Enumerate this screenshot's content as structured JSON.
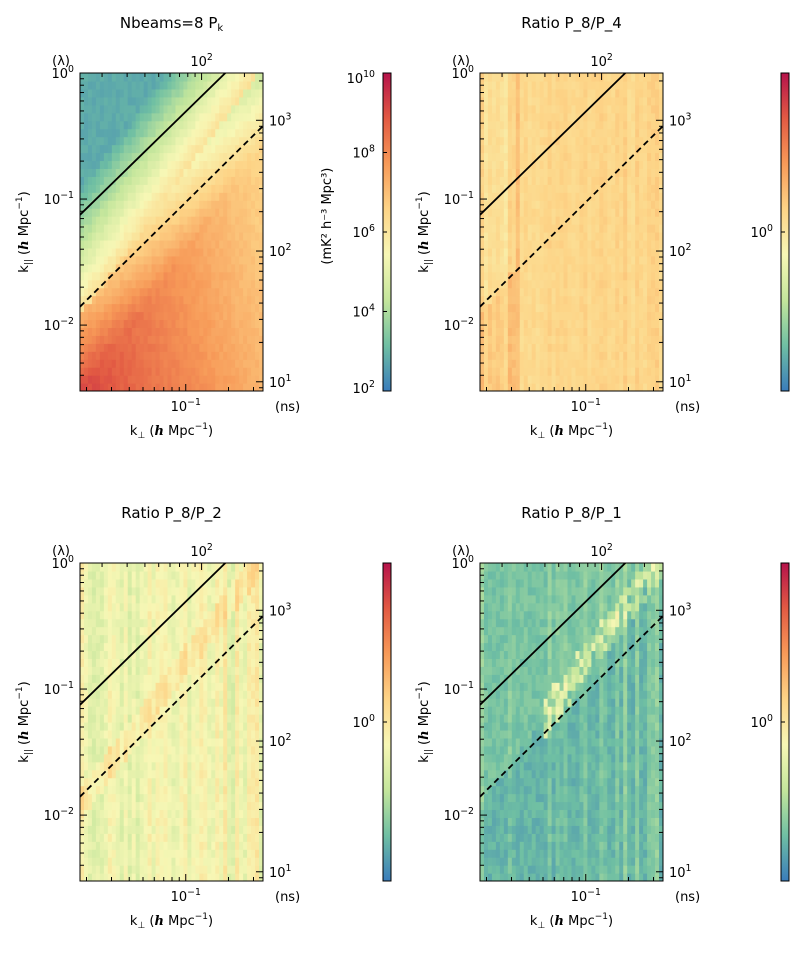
{
  "colors": {
    "spectral": [
      "#3a7dbb",
      "#6fbfa3",
      "#c4e69c",
      "#f7f7b5",
      "#fdd487",
      "#f79a58",
      "#e25a43",
      "#b5134b"
    ]
  },
  "axis_text": {
    "kperp_pre": "k",
    "kperp_sub": "⊥",
    "kpar_pre": "k",
    "kpar_sub": "||",
    "unit_italic": "h",
    "unit_rest": " Mpc",
    "unit_exp": "−1",
    "lambda": "(λ)",
    "ns": "(ns)",
    "top_tick": "10",
    "top_tick_exp": "2"
  },
  "chart_data": [
    {
      "id": "p1",
      "type": "heatmap",
      "title": "Nbeams=8 P",
      "title_sub": "k",
      "xlabel": "k⊥ (h Mpc⁻¹)",
      "ylabel": "k|| (h Mpc⁻¹)",
      "x_scale": "log",
      "xlim": [
        0.018,
        0.35
      ],
      "y_scale": "log",
      "ylim": [
        0.003,
        1.0
      ],
      "x_ticks": [
        {
          "v": 0.1,
          "m": "10",
          "e": "−1"
        }
      ],
      "y_ticks": [
        {
          "v": 0.01,
          "m": "10",
          "e": "−2"
        },
        {
          "v": 0.1,
          "m": "10",
          "e": "−1"
        },
        {
          "v": 1.0,
          "m": "10",
          "e": "0"
        }
      ],
      "right_axis": {
        "label": "(ns)",
        "ticks": [
          {
            "v": 10,
            "m": "10",
            "e": "1"
          },
          {
            "v": 100,
            "m": "10",
            "e": "2"
          },
          {
            "v": 1000,
            "m": "10",
            "e": "3"
          }
        ]
      },
      "top_axis": {
        "label": "(λ)",
        "ticks": [
          {
            "m": "10",
            "e": "2"
          }
        ]
      },
      "horizon_line": {
        "style": "solid",
        "points": [
          [
            0.018,
            0.075
          ],
          [
            0.19,
            1.0
          ]
        ]
      },
      "fov_line": {
        "style": "dashed",
        "points": [
          [
            0.018,
            0.014
          ],
          [
            0.35,
            0.38
          ]
        ]
      },
      "colorbar": {
        "label": "(mK² h⁻³ Mpc³)",
        "ticks": [
          {
            "frac": 0.0,
            "m": "10",
            "e": "2"
          },
          {
            "frac": 0.25,
            "m": "10",
            "e": "4"
          },
          {
            "frac": 0.5,
            "m": "10",
            "e": "6"
          },
          {
            "frac": 0.75,
            "m": "10",
            "e": "8"
          },
          {
            "frac": 1.0,
            "m": "10",
            "e": "10"
          }
        ]
      }
    },
    {
      "id": "p2",
      "type": "heatmap",
      "title": "Ratio P_8/P_4",
      "title_sub": "",
      "xlabel": "k⊥ (h Mpc⁻¹)",
      "ylabel": "k|| (h Mpc⁻¹)",
      "x_scale": "log",
      "xlim": [
        0.018,
        0.35
      ],
      "y_scale": "log",
      "ylim": [
        0.003,
        1.0
      ],
      "x_ticks": [
        {
          "v": 0.1,
          "m": "10",
          "e": "−1"
        }
      ],
      "y_ticks": [
        {
          "v": 0.01,
          "m": "10",
          "e": "−2"
        },
        {
          "v": 0.1,
          "m": "10",
          "e": "−1"
        },
        {
          "v": 1.0,
          "m": "10",
          "e": "0"
        }
      ],
      "right_axis": {
        "label": "(ns)",
        "ticks": [
          {
            "v": 10,
            "m": "10",
            "e": "1"
          },
          {
            "v": 100,
            "m": "10",
            "e": "2"
          },
          {
            "v": 1000,
            "m": "10",
            "e": "3"
          }
        ]
      },
      "top_axis": {
        "label": "(λ)",
        "ticks": [
          {
            "m": "10",
            "e": "2"
          }
        ]
      },
      "horizon_line": {
        "style": "solid",
        "points": [
          [
            0.018,
            0.075
          ],
          [
            0.19,
            1.0
          ]
        ]
      },
      "fov_line": {
        "style": "dashed",
        "points": [
          [
            0.018,
            0.014
          ],
          [
            0.35,
            0.38
          ]
        ]
      },
      "colorbar": {
        "label": "",
        "ticks": [
          {
            "frac": 0.5,
            "m": "10",
            "e": "0"
          }
        ]
      }
    },
    {
      "id": "p3",
      "type": "heatmap",
      "title": "Ratio P_8/P_2",
      "title_sub": "",
      "xlabel": "k⊥ (h Mpc⁻¹)",
      "ylabel": "k|| (h Mpc⁻¹)",
      "x_scale": "log",
      "xlim": [
        0.018,
        0.35
      ],
      "y_scale": "log",
      "ylim": [
        0.003,
        1.0
      ],
      "x_ticks": [
        {
          "v": 0.1,
          "m": "10",
          "e": "−1"
        }
      ],
      "y_ticks": [
        {
          "v": 0.01,
          "m": "10",
          "e": "−2"
        },
        {
          "v": 0.1,
          "m": "10",
          "e": "−1"
        },
        {
          "v": 1.0,
          "m": "10",
          "e": "0"
        }
      ],
      "right_axis": {
        "label": "(ns)",
        "ticks": [
          {
            "v": 10,
            "m": "10",
            "e": "1"
          },
          {
            "v": 100,
            "m": "10",
            "e": "2"
          },
          {
            "v": 1000,
            "m": "10",
            "e": "3"
          }
        ]
      },
      "top_axis": {
        "label": "(λ)",
        "ticks": [
          {
            "m": "10",
            "e": "2"
          }
        ]
      },
      "horizon_line": {
        "style": "solid",
        "points": [
          [
            0.018,
            0.075
          ],
          [
            0.19,
            1.0
          ]
        ]
      },
      "fov_line": {
        "style": "dashed",
        "points": [
          [
            0.018,
            0.014
          ],
          [
            0.35,
            0.38
          ]
        ]
      },
      "colorbar": {
        "label": "",
        "ticks": [
          {
            "frac": 0.5,
            "m": "10",
            "e": "0"
          }
        ]
      }
    },
    {
      "id": "p4",
      "type": "heatmap",
      "title": "Ratio P_8/P_1",
      "title_sub": "",
      "xlabel": "k⊥ (h Mpc⁻¹)",
      "ylabel": "k|| (h Mpc⁻¹)",
      "x_scale": "log",
      "xlim": [
        0.018,
        0.35
      ],
      "y_scale": "log",
      "ylim": [
        0.003,
        1.0
      ],
      "x_ticks": [
        {
          "v": 0.1,
          "m": "10",
          "e": "−1"
        }
      ],
      "y_ticks": [
        {
          "v": 0.01,
          "m": "10",
          "e": "−2"
        },
        {
          "v": 0.1,
          "m": "10",
          "e": "−1"
        },
        {
          "v": 1.0,
          "m": "10",
          "e": "0"
        }
      ],
      "right_axis": {
        "label": "(ns)",
        "ticks": [
          {
            "v": 10,
            "m": "10",
            "e": "1"
          },
          {
            "v": 100,
            "m": "10",
            "e": "2"
          },
          {
            "v": 1000,
            "m": "10",
            "e": "3"
          }
        ]
      },
      "top_axis": {
        "label": "(λ)",
        "ticks": [
          {
            "m": "10",
            "e": "2"
          }
        ]
      },
      "horizon_line": {
        "style": "solid",
        "points": [
          [
            0.018,
            0.075
          ],
          [
            0.19,
            1.0
          ]
        ]
      },
      "fov_line": {
        "style": "dashed",
        "points": [
          [
            0.018,
            0.014
          ],
          [
            0.35,
            0.38
          ]
        ]
      },
      "colorbar": {
        "label": "",
        "ticks": [
          {
            "frac": 0.5,
            "m": "10",
            "e": "0"
          }
        ]
      }
    }
  ]
}
